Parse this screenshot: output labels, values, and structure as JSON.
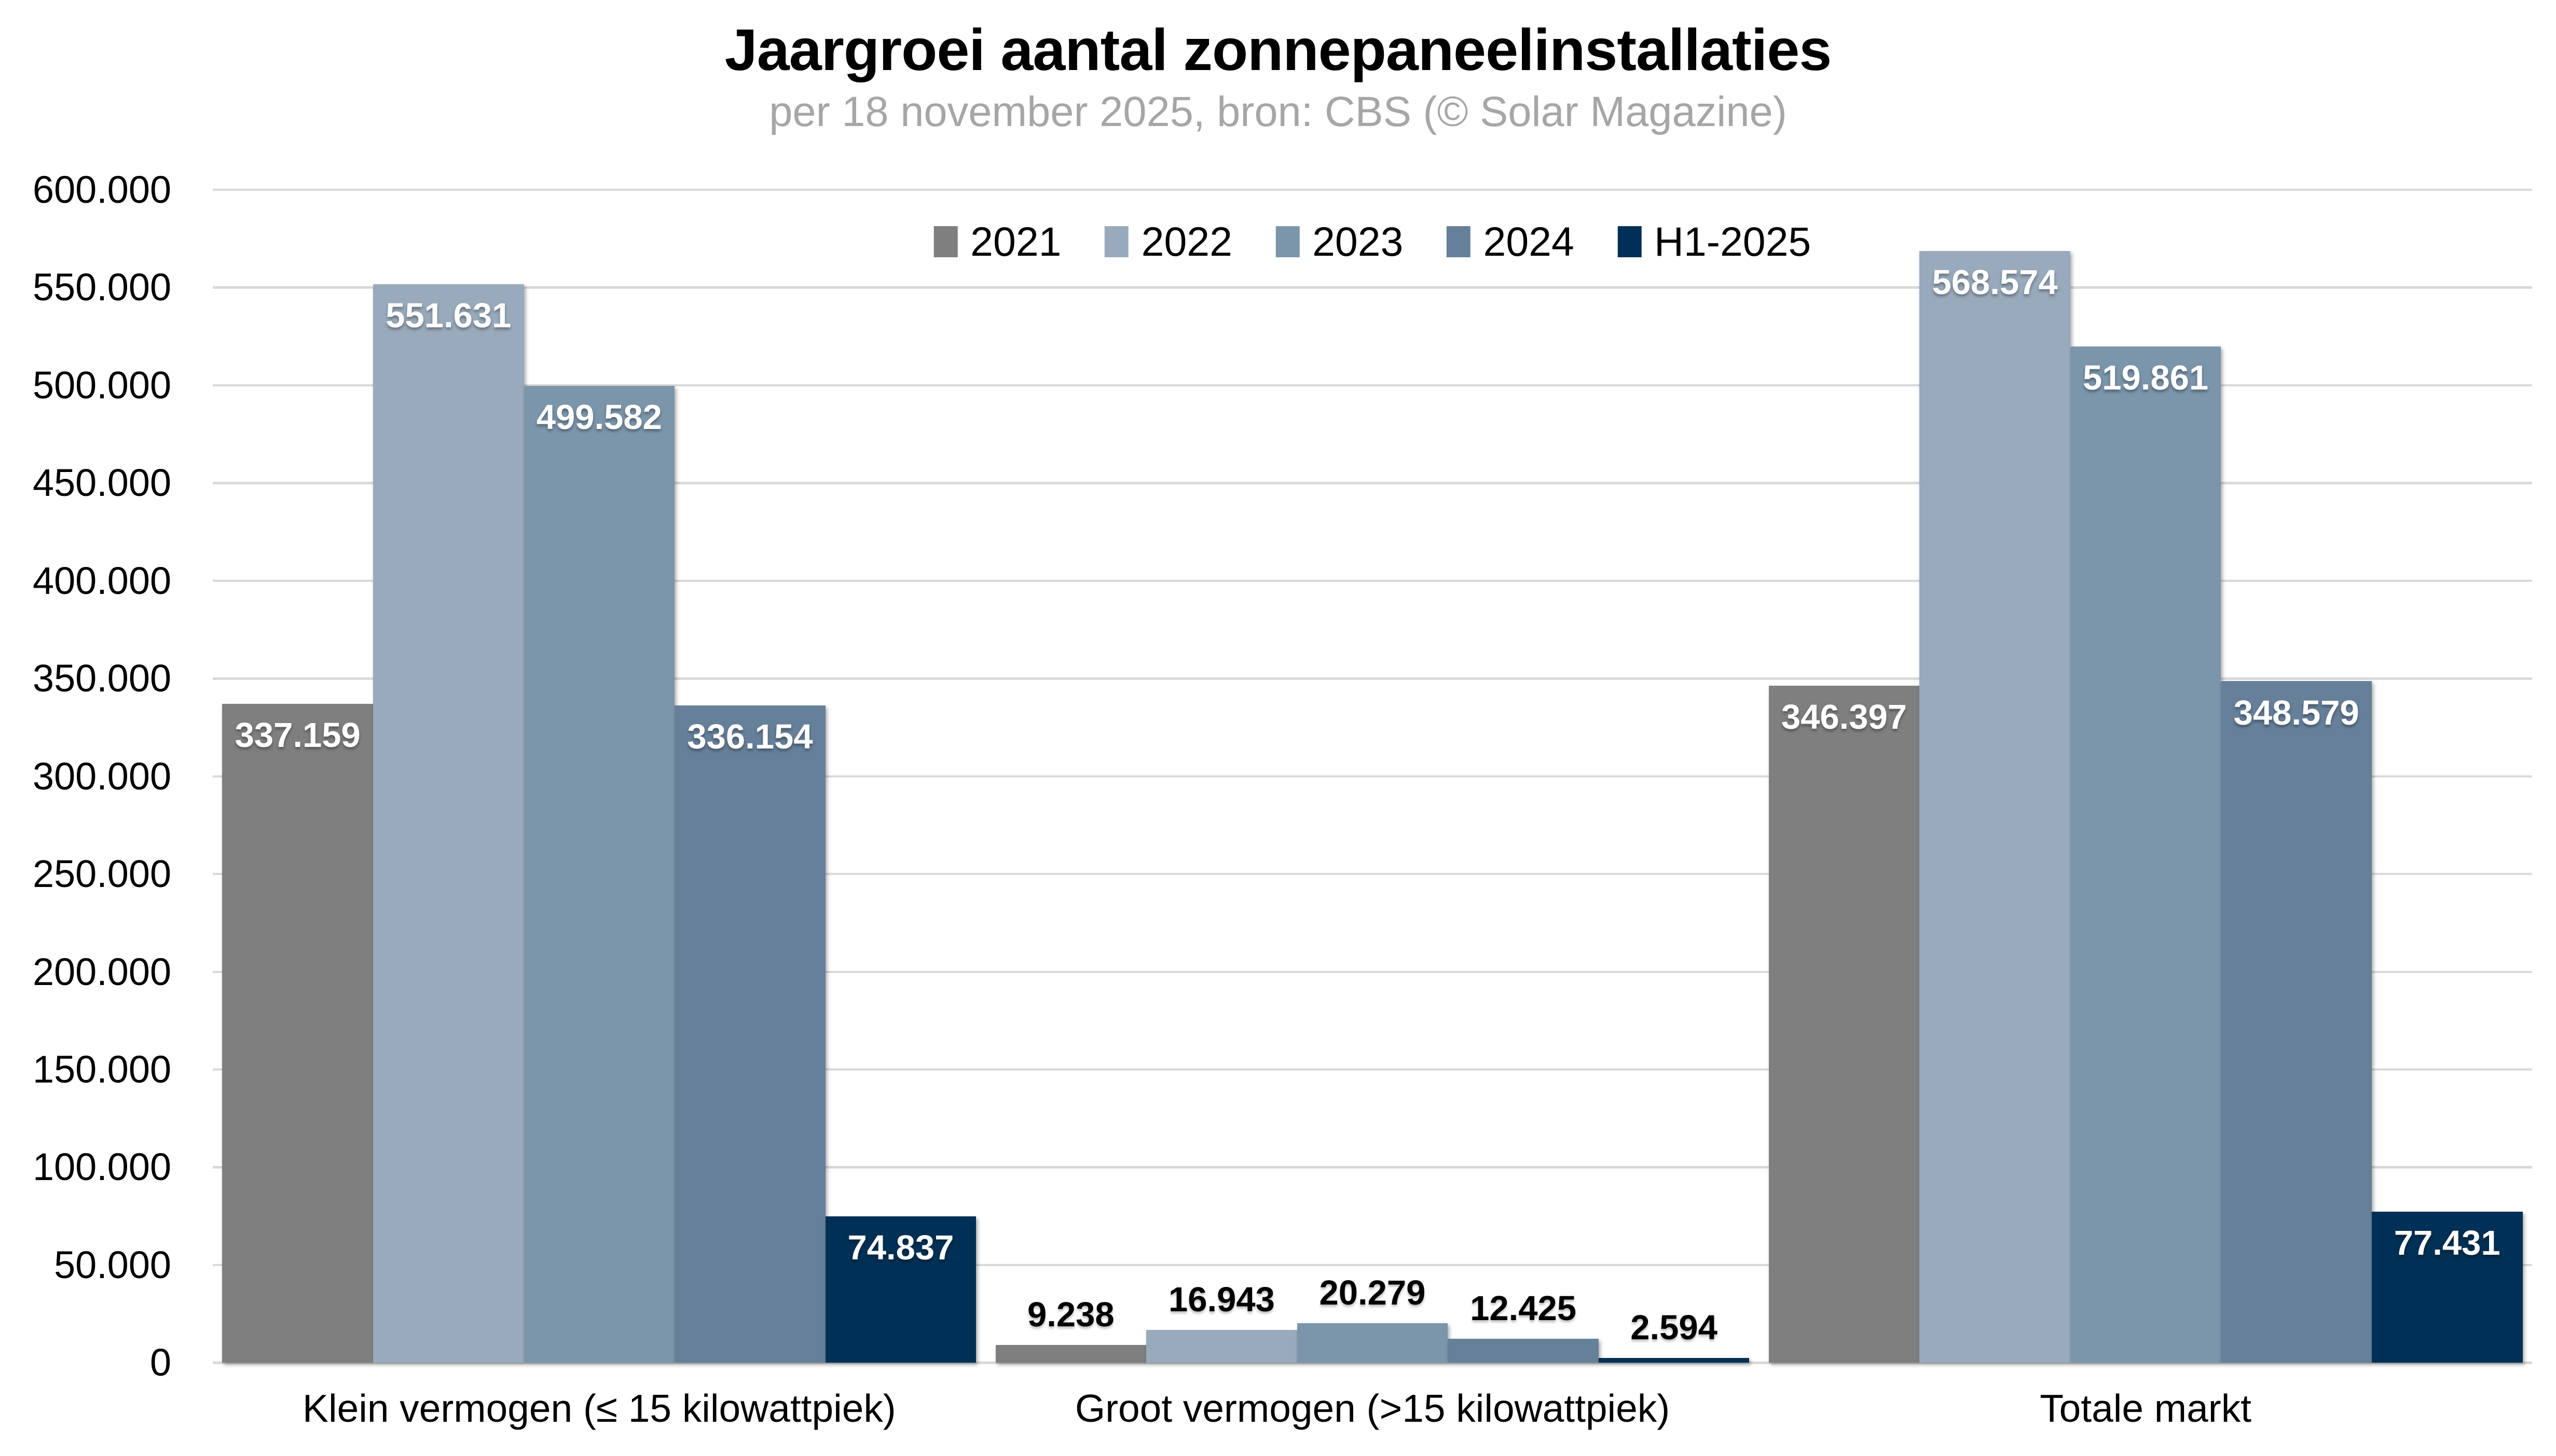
{
  "title": "Jaargroei aantal zonnepaneelinstallaties",
  "subtitle": "per 18 november 2025, bron: CBS (© Solar Magazine)",
  "colors": {
    "background": "#ffffff",
    "gridline": "#d9d9d9",
    "subtitle_text": "#a6a6a6",
    "inside_label_text": "#ffffff",
    "outside_label_text": "#000000"
  },
  "y_axis": {
    "ticks": [
      "600.000",
      "550.000",
      "500.000",
      "450.000",
      "400.000",
      "350.000",
      "300.000",
      "250.000",
      "200.000",
      "150.000",
      "100.000",
      "50.000",
      "0"
    ]
  },
  "chart_data": {
    "type": "bar",
    "title": "Jaargroei aantal zonnepaneelinstallaties",
    "subtitle": "per 18 november 2025, bron: CBS (© Solar Magazine)",
    "categories": [
      "Klein vermogen (≤ 15 kilowattpiek)",
      "Groot vermogen (>15 kilowattpiek)",
      "Totale markt"
    ],
    "series": [
      {
        "name": "2021",
        "color": "#7f7f7f",
        "values": [
          337159,
          9238,
          346397
        ],
        "labels": [
          "337.159",
          "9.238",
          "346.397"
        ]
      },
      {
        "name": "2022",
        "color": "#99aabc",
        "values": [
          551631,
          16943,
          568574
        ],
        "labels": [
          "551.631",
          "16.943",
          "568.574"
        ]
      },
      {
        "name": "2023",
        "color": "#7b95ab",
        "values": [
          499582,
          20279,
          519861
        ],
        "labels": [
          "499.582",
          "20.279",
          "519.861"
        ]
      },
      {
        "name": "2024",
        "color": "#66809a",
        "values": [
          336154,
          12425,
          348579
        ],
        "labels": [
          "336.154",
          "12.425",
          "348.579"
        ]
      },
      {
        "name": "H1-2025",
        "color": "#003055",
        "values": [
          74837,
          2594,
          77431
        ],
        "labels": [
          "74.837",
          "2.594",
          "77.431"
        ]
      }
    ],
    "ylim": [
      0,
      600000
    ],
    "ytick_step": 50000,
    "grid": true,
    "legend_position": "top-center-inside"
  }
}
